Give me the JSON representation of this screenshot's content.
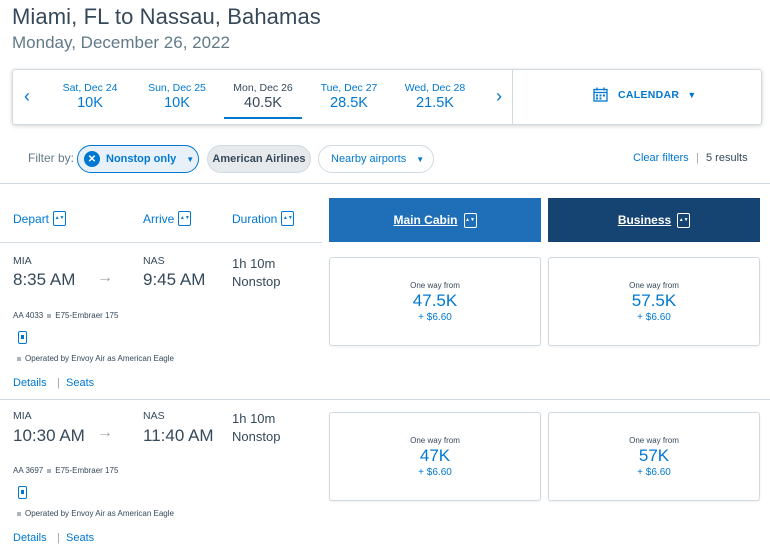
{
  "header": {
    "route": "Miami, FL to Nassau, Bahamas",
    "date": "Monday, December 26, 2022"
  },
  "date_bar": {
    "prev_icon": "chevron-left-icon",
    "next_icon": "chevron-right-icon",
    "prev_glyph": "‹",
    "next_glyph": "›",
    "days": [
      {
        "label": "Sat, Dec 24",
        "price": "10K",
        "selected": false
      },
      {
        "label": "Sun, Dec 25",
        "price": "10K",
        "selected": false
      },
      {
        "label": "Mon, Dec 26",
        "price": "40.5K",
        "selected": true
      },
      {
        "label": "Tue, Dec 27",
        "price": "28.5K",
        "selected": false
      },
      {
        "label": "Wed, Dec 28",
        "price": "21.5K",
        "selected": false
      }
    ],
    "calendar_label": "CALENDAR"
  },
  "filters": {
    "label": "Filter by:",
    "nonstop": "Nonstop only",
    "airline": "American Airlines",
    "nearby": "Nearby airports",
    "clear": "Clear filters",
    "separator": "|",
    "results": "5 results"
  },
  "columns": {
    "depart": "Depart",
    "arrive": "Arrive",
    "duration": "Duration",
    "main_cabin": "Main Cabin",
    "business": "Business"
  },
  "flights": [
    {
      "dep_code": "MIA",
      "dep_time": "8:35 AM",
      "arr_code": "NAS",
      "arr_time": "9:45 AM",
      "duration": "1h 10m",
      "stops": "Nonstop",
      "flight_no": "AA 4033",
      "aircraft": "E75-Embraer 175",
      "operated_by": "Operated by Envoy Air as American Eagle",
      "details": "Details",
      "seats": "Seats",
      "main": {
        "label": "One way from",
        "price": "47.5K",
        "fee": "+ $6.60"
      },
      "business": {
        "label": "One way from",
        "price": "57.5K",
        "fee": "+ $6.60"
      }
    },
    {
      "dep_code": "MIA",
      "dep_time": "10:30 AM",
      "arr_code": "NAS",
      "arr_time": "11:40 AM",
      "duration": "1h 10m",
      "stops": "Nonstop",
      "flight_no": "AA 3697",
      "aircraft": "E75-Embraer 175",
      "operated_by": "Operated by Envoy Air as American Eagle",
      "details": "Details",
      "seats": "Seats",
      "main": {
        "label": "One way from",
        "price": "47K",
        "fee": "+ $6.60"
      },
      "business": {
        "label": "One way from",
        "price": "57K",
        "fee": "+ $6.60"
      }
    }
  ],
  "colors": {
    "brand_blue": "#0078d2",
    "main_cabin_header": "#1f6fb8",
    "business_header": "#154372",
    "text": "#36495a"
  }
}
